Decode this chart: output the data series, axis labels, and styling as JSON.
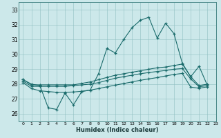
{
  "xlabel": "Humidex (Indice chaleur)",
  "bg_color": "#cce8ea",
  "line_color": "#1a6b6b",
  "xlim": [
    -0.5,
    23
  ],
  "ylim": [
    25.5,
    33.5
  ],
  "yticks": [
    26,
    27,
    28,
    29,
    30,
    31,
    32,
    33
  ],
  "xticks": [
    0,
    1,
    2,
    3,
    4,
    5,
    6,
    7,
    8,
    9,
    10,
    11,
    12,
    13,
    14,
    15,
    16,
    17,
    18,
    19,
    20,
    21,
    22,
    23
  ],
  "line1_y": [
    28.3,
    28.0,
    27.9,
    26.4,
    26.3,
    27.4,
    26.6,
    27.5,
    27.6,
    28.7,
    30.4,
    30.1,
    31.0,
    31.8,
    32.3,
    32.5,
    31.1,
    32.1,
    31.4,
    29.4,
    28.5,
    29.2,
    27.9,
    28.0
  ],
  "line2_y": [
    28.3,
    27.95,
    27.95,
    27.95,
    27.95,
    27.95,
    27.95,
    28.05,
    28.15,
    28.3,
    28.45,
    28.6,
    28.7,
    28.8,
    28.9,
    29.0,
    29.1,
    29.15,
    29.25,
    29.35,
    28.5,
    27.9,
    28.0,
    27.95
  ],
  "line3_y": [
    28.2,
    27.85,
    27.85,
    27.85,
    27.85,
    27.85,
    27.9,
    27.95,
    28.0,
    28.1,
    28.25,
    28.4,
    28.5,
    28.6,
    28.7,
    28.78,
    28.85,
    28.92,
    29.0,
    29.05,
    28.35,
    27.82,
    27.9,
    27.85
  ],
  "line4_y": [
    28.1,
    27.7,
    27.55,
    27.5,
    27.45,
    27.45,
    27.47,
    27.52,
    27.6,
    27.7,
    27.82,
    27.93,
    28.04,
    28.15,
    28.26,
    28.35,
    28.44,
    28.55,
    28.65,
    28.72,
    27.8,
    27.72,
    27.82,
    27.77
  ]
}
